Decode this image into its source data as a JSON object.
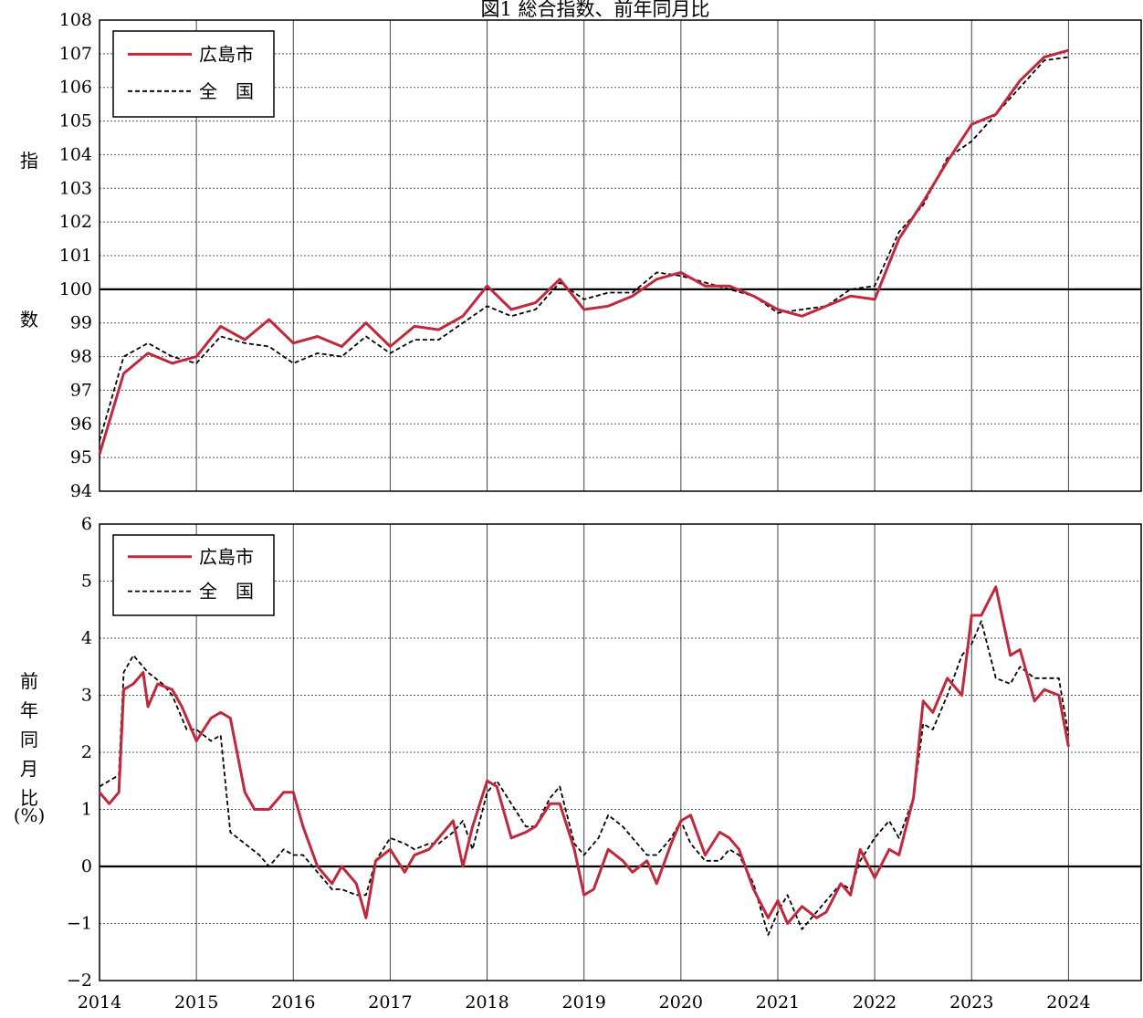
{
  "title": "図1 総合指数、前年同月比",
  "series_colors": {
    "hiroshima": "#C0283C",
    "national": "#000000"
  },
  "chart_data": [
    {
      "type": "line",
      "ylabel": [
        "指",
        "数"
      ],
      "ylim": [
        94,
        108
      ],
      "yticks": [
        94,
        95,
        96,
        97,
        98,
        99,
        100,
        101,
        102,
        103,
        104,
        105,
        106,
        107,
        108
      ],
      "xlim": [
        2014,
        2024.75
      ],
      "xticks": [
        "2014",
        "2015",
        "2016",
        "2017",
        "2018",
        "2019",
        "2020",
        "2021",
        "2022",
        "2023",
        "2024"
      ],
      "reference_line": 100,
      "legend_position": "top-left",
      "grid": true,
      "series": [
        {
          "name": "広島市",
          "style": "solid",
          "x": [
            2014.0,
            2014.25,
            2014.5,
            2014.75,
            2015.0,
            2015.25,
            2015.5,
            2015.75,
            2016.0,
            2016.25,
            2016.5,
            2016.75,
            2017.0,
            2017.25,
            2017.5,
            2017.75,
            2018.0,
            2018.25,
            2018.5,
            2018.75,
            2019.0,
            2019.25,
            2019.5,
            2019.75,
            2020.0,
            2020.25,
            2020.5,
            2020.75,
            2021.0,
            2021.25,
            2021.5,
            2021.75,
            2022.0,
            2022.25,
            2022.5,
            2022.75,
            2023.0,
            2023.25,
            2023.5,
            2023.75,
            2024.0
          ],
          "values": [
            95.1,
            97.5,
            98.1,
            97.8,
            98.0,
            98.9,
            98.5,
            99.1,
            98.4,
            98.6,
            98.3,
            99.0,
            98.3,
            98.9,
            98.8,
            99.2,
            100.1,
            99.4,
            99.6,
            100.3,
            99.4,
            99.5,
            99.8,
            100.3,
            100.5,
            100.1,
            100.1,
            99.8,
            99.4,
            99.2,
            99.5,
            99.8,
            99.7,
            101.5,
            102.6,
            103.8,
            104.9,
            105.2,
            106.2,
            106.9,
            107.1
          ]
        },
        {
          "name": "全　国",
          "style": "dashed",
          "x": [
            2014.0,
            2014.25,
            2014.5,
            2014.75,
            2015.0,
            2015.25,
            2015.5,
            2015.75,
            2016.0,
            2016.25,
            2016.5,
            2016.75,
            2017.0,
            2017.25,
            2017.5,
            2017.75,
            2018.0,
            2018.25,
            2018.5,
            2018.75,
            2019.0,
            2019.25,
            2019.5,
            2019.75,
            2020.0,
            2020.25,
            2020.5,
            2020.75,
            2021.0,
            2021.25,
            2021.5,
            2021.75,
            2022.0,
            2022.25,
            2022.5,
            2022.75,
            2023.0,
            2023.25,
            2023.5,
            2023.75,
            2024.0
          ],
          "values": [
            95.5,
            98.0,
            98.4,
            98.0,
            97.8,
            98.6,
            98.4,
            98.3,
            97.8,
            98.1,
            98.0,
            98.6,
            98.1,
            98.5,
            98.5,
            99.0,
            99.5,
            99.2,
            99.4,
            100.2,
            99.7,
            99.9,
            99.9,
            100.5,
            100.4,
            100.2,
            100.0,
            99.8,
            99.3,
            99.4,
            99.5,
            100.0,
            100.1,
            101.7,
            102.5,
            103.9,
            104.4,
            105.2,
            106.0,
            106.8,
            106.9
          ]
        }
      ]
    },
    {
      "type": "line",
      "ylabel": [
        "前",
        "年",
        "同",
        "月",
        "比",
        "(%)"
      ],
      "ylim": [
        -2,
        6
      ],
      "yticks": [
        -2,
        -1,
        0,
        1,
        2,
        3,
        4,
        5,
        6
      ],
      "ytick_labels": [
        "−2",
        "−1",
        "0",
        "1",
        "2",
        "3",
        "4",
        "5",
        "6"
      ],
      "xlim": [
        2014,
        2024.75
      ],
      "xticks": [
        "2014",
        "2015",
        "2016",
        "2017",
        "2018",
        "2019",
        "2020",
        "2021",
        "2022",
        "2023",
        "2024"
      ],
      "reference_line": 0,
      "legend_position": "top-left",
      "grid": true,
      "series": [
        {
          "name": "広島市",
          "style": "solid",
          "x": [
            2014.0,
            2014.1,
            2014.2,
            2014.25,
            2014.35,
            2014.45,
            2014.5,
            2014.6,
            2014.75,
            2014.85,
            2015.0,
            2015.15,
            2015.25,
            2015.35,
            2015.5,
            2015.6,
            2015.75,
            2015.9,
            2016.0,
            2016.1,
            2016.25,
            2016.4,
            2016.5,
            2016.65,
            2016.75,
            2016.85,
            2017.0,
            2017.15,
            2017.25,
            2017.4,
            2017.5,
            2017.65,
            2017.75,
            2017.85,
            2018.0,
            2018.1,
            2018.25,
            2018.4,
            2018.5,
            2018.65,
            2018.75,
            2018.9,
            2019.0,
            2019.1,
            2019.25,
            2019.4,
            2019.5,
            2019.65,
            2019.75,
            2019.9,
            2020.0,
            2020.1,
            2020.25,
            2020.4,
            2020.5,
            2020.6,
            2020.75,
            2020.9,
            2021.0,
            2021.1,
            2021.25,
            2021.4,
            2021.5,
            2021.65,
            2021.75,
            2021.85,
            2022.0,
            2022.15,
            2022.25,
            2022.4,
            2022.5,
            2022.6,
            2022.75,
            2022.9,
            2023.0,
            2023.1,
            2023.25,
            2023.4,
            2023.5,
            2023.65,
            2023.75,
            2023.9,
            2024.0
          ],
          "values": [
            1.3,
            1.1,
            1.3,
            3.1,
            3.2,
            3.4,
            2.8,
            3.2,
            3.1,
            2.8,
            2.2,
            2.6,
            2.7,
            2.6,
            1.3,
            1.0,
            1.0,
            1.3,
            1.3,
            0.7,
            0.0,
            -0.3,
            0.0,
            -0.3,
            -0.9,
            0.1,
            0.3,
            -0.1,
            0.2,
            0.3,
            0.5,
            0.8,
            0.0,
            0.7,
            1.5,
            1.4,
            0.5,
            0.6,
            0.7,
            1.1,
            1.1,
            0.3,
            -0.5,
            -0.4,
            0.3,
            0.1,
            -0.1,
            0.1,
            -0.3,
            0.4,
            0.8,
            0.9,
            0.2,
            0.6,
            0.5,
            0.3,
            -0.4,
            -0.9,
            -0.6,
            -1.0,
            -0.7,
            -0.9,
            -0.8,
            -0.3,
            -0.5,
            0.3,
            -0.2,
            0.3,
            0.2,
            1.2,
            2.9,
            2.7,
            3.3,
            3.0,
            4.4,
            4.4,
            4.9,
            3.7,
            3.8,
            2.9,
            3.1,
            3.0,
            2.1
          ]
        },
        {
          "name": "全　国",
          "style": "dashed",
          "x": [
            2014.0,
            2014.2,
            2014.25,
            2014.35,
            2014.5,
            2014.65,
            2014.75,
            2014.9,
            2015.0,
            2015.15,
            2015.25,
            2015.35,
            2015.5,
            2015.65,
            2015.75,
            2015.9,
            2016.0,
            2016.1,
            2016.25,
            2016.4,
            2016.5,
            2016.65,
            2016.75,
            2016.85,
            2017.0,
            2017.15,
            2017.25,
            2017.4,
            2017.5,
            2017.65,
            2017.75,
            2017.85,
            2018.0,
            2018.1,
            2018.25,
            2018.4,
            2018.5,
            2018.65,
            2018.75,
            2018.9,
            2019.0,
            2019.15,
            2019.25,
            2019.4,
            2019.5,
            2019.65,
            2019.75,
            2019.9,
            2020.0,
            2020.1,
            2020.25,
            2020.4,
            2020.5,
            2020.6,
            2020.75,
            2020.9,
            2021.0,
            2021.1,
            2021.25,
            2021.4,
            2021.5,
            2021.65,
            2021.75,
            2021.85,
            2022.0,
            2022.15,
            2022.25,
            2022.4,
            2022.5,
            2022.6,
            2022.75,
            2022.9,
            2023.0,
            2023.1,
            2023.25,
            2023.4,
            2023.5,
            2023.65,
            2023.75,
            2023.9,
            2024.0
          ],
          "values": [
            1.4,
            1.6,
            3.4,
            3.7,
            3.4,
            3.2,
            3.0,
            2.4,
            2.4,
            2.2,
            2.3,
            0.6,
            0.4,
            0.2,
            0.0,
            0.3,
            0.2,
            0.2,
            -0.1,
            -0.4,
            -0.4,
            -0.5,
            -0.5,
            0.1,
            0.5,
            0.4,
            0.3,
            0.4,
            0.4,
            0.6,
            0.8,
            0.3,
            1.3,
            1.5,
            1.1,
            0.7,
            0.7,
            1.2,
            1.4,
            0.4,
            0.2,
            0.5,
            0.9,
            0.7,
            0.5,
            0.2,
            0.2,
            0.5,
            0.8,
            0.4,
            0.1,
            0.1,
            0.3,
            0.2,
            -0.3,
            -1.2,
            -0.8,
            -0.5,
            -1.1,
            -0.8,
            -0.6,
            -0.3,
            -0.4,
            0.1,
            0.5,
            0.8,
            0.5,
            1.2,
            2.5,
            2.4,
            3.0,
            3.7,
            3.9,
            4.3,
            3.3,
            3.2,
            3.5,
            3.3,
            3.3,
            3.3,
            2.3
          ]
        }
      ]
    }
  ]
}
